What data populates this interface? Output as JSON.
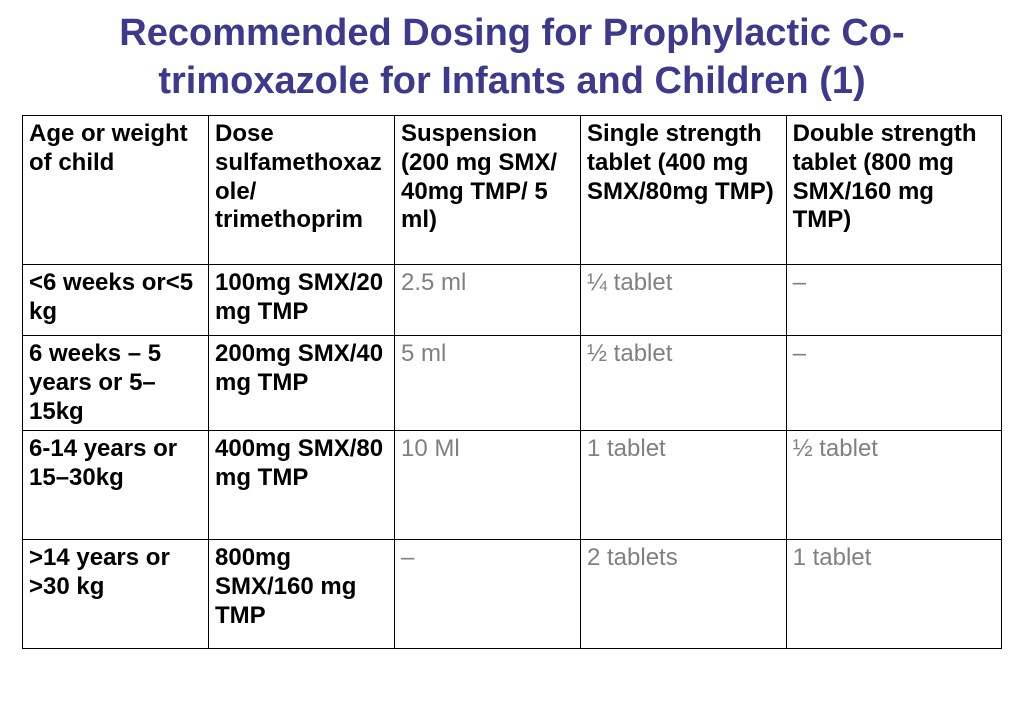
{
  "title": "Recommended Dosing for Prophylactic Co-trimoxazole for Infants and Children (1)",
  "table": {
    "type": "table",
    "border_color": "#000000",
    "header_text_color": "#000000",
    "body_bold_text_color": "#000000",
    "body_gray_text_color": "#808080",
    "background_color": "#ffffff",
    "font_family": "Arial",
    "header_fontsize": 24,
    "body_fontsize": 24,
    "column_widths_pct": [
      19,
      19,
      19,
      21,
      22
    ],
    "columns": [
      "Age or weight of child",
      "Dose sulfamethoxazole/ trimethoprim",
      "Suspension (200 mg SMX/ 40mg TMP/ 5 ml)",
      "Single strength tablet (400 mg SMX/80mg TMP)",
      "Double strength tablet (800 mg SMX/160 mg TMP)"
    ],
    "rows": [
      {
        "age": "<6 weeks or<5 kg",
        "dose": "100mg SMX/20 mg TMP",
        "suspension": "2.5 ml",
        "single": "¼ tablet",
        "double": "–"
      },
      {
        "age": "6 weeks – 5 years or 5–15kg",
        "dose": "200mg SMX/40 mg TMP",
        "suspension": "5 ml",
        "single": "½ tablet",
        "double": "–"
      },
      {
        "age": "6-14 years or  15–30kg",
        "dose": "400mg SMX/80 mg TMP",
        "suspension": "10 Ml",
        "single": "1 tablet",
        "double": "½ tablet"
      },
      {
        "age": ">14 years or >30 kg",
        "dose": "800mg SMX/160 mg TMP",
        "suspension": "–",
        "single": "2 tablets",
        "double": "1 tablet"
      }
    ]
  },
  "title_color": "#3d398c",
  "title_fontsize": 38
}
